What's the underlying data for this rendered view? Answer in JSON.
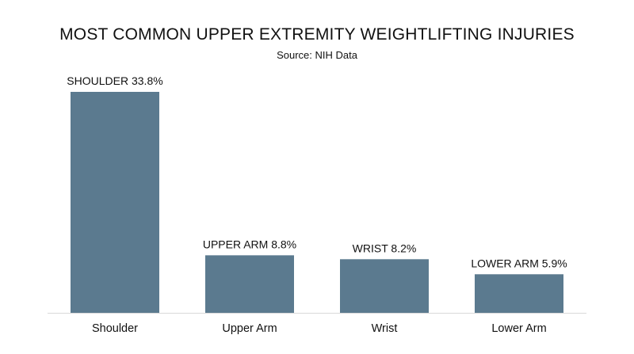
{
  "chart_data": {
    "type": "bar",
    "title": "MOST COMMON UPPER EXTREMITY WEIGHTLIFTING INJURIES",
    "subtitle": "Source: NIH Data",
    "categories": [
      "Shoulder",
      "Upper Arm",
      "Wrist",
      "Lower Arm"
    ],
    "values": [
      33.8,
      8.8,
      8.2,
      5.9
    ],
    "data_labels": [
      "SHOULDER 33.8%",
      "UPPER ARM 8.8%",
      "WRIST 8.2%",
      "LOWER ARM 5.9%"
    ],
    "unit": "%",
    "xlabel": "",
    "ylabel": "",
    "ylim": [
      0,
      33.8
    ],
    "grid": false,
    "legend": "none",
    "bar_color": "#5b7a8f",
    "axis_color": "#d9d9d9"
  }
}
